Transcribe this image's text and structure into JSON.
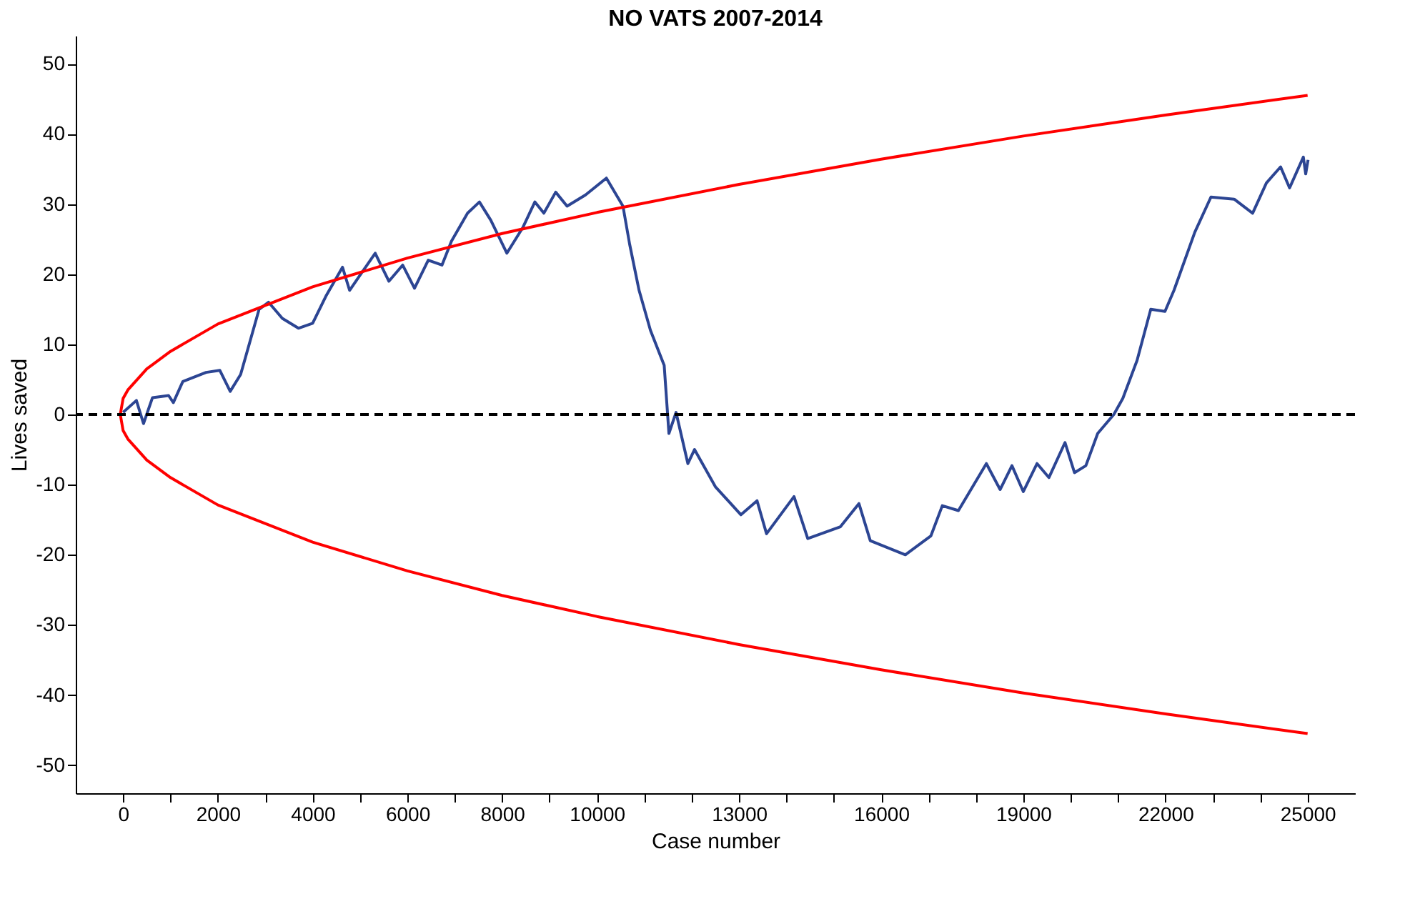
{
  "chart_data": {
    "type": "line",
    "title": "NO VATS 2007-2014",
    "xlabel": "Case number",
    "ylabel": "Lives saved",
    "xlim": [
      -1000,
      26000
    ],
    "ylim": [
      -54,
      54
    ],
    "xticks": [
      0,
      {
        "value": 1000,
        "label": null
      },
      2000,
      {
        "value": 3000,
        "label": null
      },
      4000,
      {
        "value": 5000,
        "label": null
      },
      6000,
      {
        "value": 7000,
        "label": null
      },
      8000,
      {
        "value": 9000,
        "label": null
      },
      10000,
      {
        "value": 11000,
        "label": null
      },
      {
        "value": 12000,
        "label": null
      },
      13000,
      {
        "value": 14000,
        "label": null
      },
      {
        "value": 15000,
        "label": null
      },
      16000,
      {
        "value": 17000,
        "label": null
      },
      {
        "value": 18000,
        "label": null
      },
      19000,
      {
        "value": 20000,
        "label": null
      },
      {
        "value": 21000,
        "label": null
      },
      22000,
      {
        "value": 23000,
        "label": null
      },
      {
        "value": 24000,
        "label": null
      },
      25000
    ],
    "yticks": [
      -50,
      -40,
      -30,
      -20,
      -10,
      0,
      10,
      20,
      30,
      40,
      50
    ],
    "grid": false,
    "marker": "none",
    "line_style": "solid",
    "ref_lines": [
      {
        "axis": "y",
        "value": 0,
        "color": "#000000",
        "line_style": "dashed"
      }
    ],
    "series": [
      {
        "color": "#2c4593",
        "x": [
          0,
          280,
          430,
          620,
          960,
          1060,
          1260,
          1750,
          2040,
          2260,
          2480,
          2870,
          3070,
          3360,
          3700,
          4000,
          4290,
          4630,
          4780,
          5320,
          5610,
          5900,
          6150,
          6440,
          6730,
          6930,
          7270,
          7520,
          7760,
          8100,
          8440,
          8690,
          8880,
          9130,
          9370,
          9760,
          10200,
          10550,
          10690,
          10890,
          11130,
          11420,
          11520,
          11670,
          11920,
          12060,
          12500,
          13040,
          13380,
          13580,
          14160,
          14450,
          15140,
          15530,
          15770,
          16510,
          17050,
          17290,
          17630,
          18220,
          18510,
          18760,
          19000,
          19290,
          19540,
          19880,
          20080,
          20320,
          20570,
          20910,
          21100,
          21400,
          21690,
          21990,
          22180,
          22620,
          22960,
          23450,
          23840,
          24130,
          24430,
          24620,
          24910,
          24960,
          25010
        ],
        "values": [
          0.3,
          2,
          -1.3,
          2.4,
          2.7,
          1.7,
          4.7,
          6,
          6.3,
          3.3,
          5.7,
          15,
          16,
          13.7,
          12.3,
          13,
          17,
          21,
          17.7,
          23,
          19,
          21.3,
          18,
          22,
          21.3,
          24.7,
          28.7,
          30.3,
          27.7,
          23,
          26.7,
          30.3,
          28.7,
          31.7,
          29.7,
          31.3,
          33.7,
          29.7,
          24.3,
          17.7,
          12,
          7,
          -2.7,
          0.3,
          -7,
          -5,
          -10.3,
          -14.3,
          -12.3,
          -17,
          -11.7,
          -17.7,
          -16,
          -12.7,
          -18,
          -20,
          -17.3,
          -13,
          -13.7,
          -7,
          -10.7,
          -7.3,
          -11,
          -7,
          -9,
          -4,
          -8.3,
          -7.3,
          -2.7,
          0,
          2.3,
          7.7,
          15,
          14.7,
          17.7,
          26,
          31,
          30.7,
          28.7,
          33,
          35.3,
          32.3,
          36.7,
          34.3,
          36.3
        ]
      },
      {
        "color": "#ff0000",
        "x": [
          25000,
          22000,
          19000,
          16000,
          13000,
          10000,
          8000,
          6000,
          4000,
          2000,
          1000,
          500,
          100,
          0,
          -60,
          0,
          100,
          500,
          1000,
          2000,
          4000,
          6000,
          8000,
          10000,
          13000,
          16000,
          19000,
          22000,
          25000
        ],
        "values": [
          -45.5,
          -42.7,
          -39.7,
          -36.4,
          -32.8,
          -28.8,
          -25.8,
          -22.3,
          -18.2,
          -12.9,
          -9,
          -6.5,
          -3.5,
          -2.3,
          0,
          2.3,
          3.5,
          6.5,
          9,
          12.9,
          18.2,
          22.3,
          25.8,
          28.8,
          32.8,
          36.4,
          39.7,
          42.7,
          45.5
        ]
      }
    ]
  }
}
